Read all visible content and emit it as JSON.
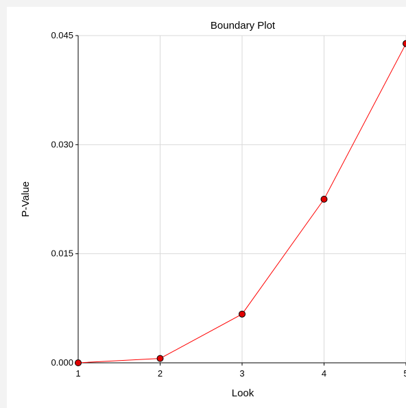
{
  "chart_data": {
    "type": "line",
    "title": "Boundary Plot",
    "xlabel": "Look",
    "ylabel": "P-Value",
    "x": [
      1,
      2,
      3,
      4,
      5
    ],
    "xticks": [
      "1",
      "2",
      "3",
      "4",
      "5"
    ],
    "yticks": [
      "0.000",
      "0.015",
      "0.030",
      "0.045"
    ],
    "ylim": [
      0,
      0.045
    ],
    "xlim": [
      1,
      5
    ],
    "grid": true,
    "series": [
      {
        "values": [
          0.0,
          0.0006,
          0.0067,
          0.0225,
          0.0439
        ],
        "color": "#ff0000",
        "marker_color": "#e00000"
      }
    ]
  }
}
